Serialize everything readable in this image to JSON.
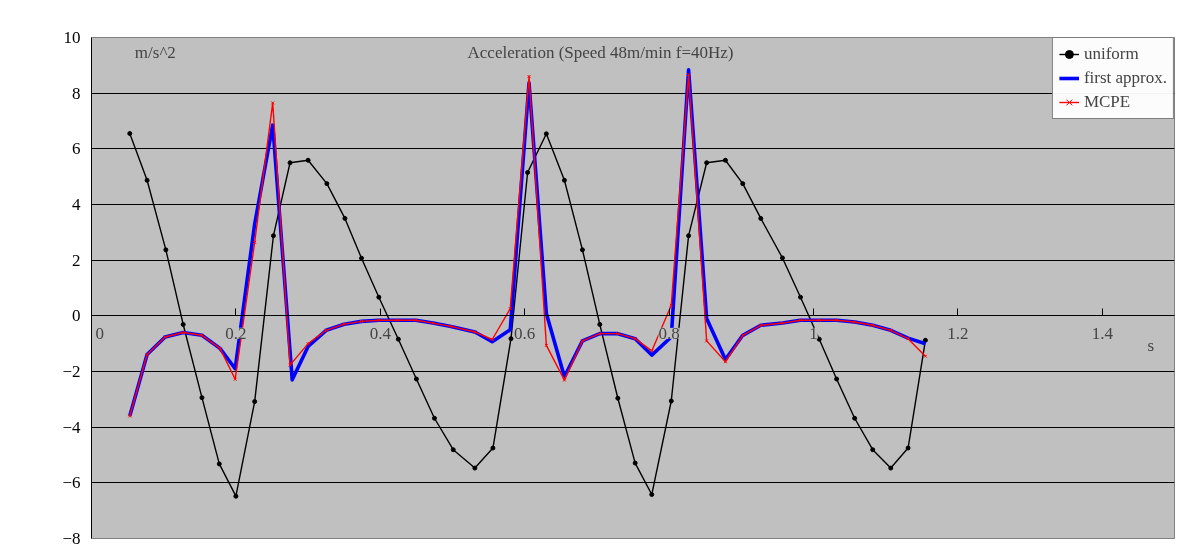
{
  "chart_data": {
    "type": "line",
    "title": "Acceleration (Speed 48m/min f=40Hz)",
    "xlabel": "s",
    "ylabel": "m/s^2",
    "xlim": [
      0,
      1.5
    ],
    "xticks": [
      0,
      0.2,
      0.4,
      0.6,
      0.8,
      1,
      1.2,
      1.4
    ],
    "ylim": [
      -8,
      10
    ],
    "yticks": [
      -8,
      -6,
      -4,
      -2,
      0,
      2,
      4,
      6,
      8,
      10
    ],
    "grid": "y",
    "legend": "top right",
    "series": [
      {
        "name": "uniform",
        "color": "#000000",
        "marker": "circle",
        "x": [
          0.053,
          0.077,
          0.103,
          0.127,
          0.153,
          0.177,
          0.2,
          0.226,
          0.252,
          0.275,
          0.3,
          0.326,
          0.351,
          0.374,
          0.398,
          0.425,
          0.45,
          0.475,
          0.501,
          0.531,
          0.556,
          0.581,
          0.604,
          0.63,
          0.655,
          0.68,
          0.704,
          0.729,
          0.753,
          0.776,
          0.803,
          0.827,
          0.852,
          0.878,
          0.902,
          0.927,
          0.957,
          0.982,
          1.008,
          1.032,
          1.057,
          1.082,
          1.107,
          1.131,
          1.155
        ],
        "values": [
          6.55,
          4.87,
          2.37,
          -0.31,
          -2.94,
          -5.32,
          -6.48,
          -3.08,
          2.88,
          5.5,
          5.59,
          4.75,
          3.5,
          2.07,
          0.67,
          -0.84,
          -2.27,
          -3.68,
          -4.81,
          -5.47,
          -4.75,
          -0.82,
          5.15,
          6.54,
          4.87,
          2.37,
          -0.31,
          -2.96,
          -5.29,
          -6.42,
          -3.06,
          2.88,
          5.5,
          5.59,
          4.75,
          3.5,
          2.08,
          0.67,
          -0.84,
          -2.27,
          -3.68,
          -4.81,
          -5.47,
          -4.75,
          -0.88
        ]
      },
      {
        "name": "first approx.",
        "color": "#0000ff",
        "marker": "none",
        "x": [
          0.053,
          0.077,
          0.102,
          0.127,
          0.153,
          0.178,
          0.199,
          0.226,
          0.251,
          0.278,
          0.3,
          0.325,
          0.35,
          0.374,
          0.398,
          0.423,
          0.449,
          0.473,
          0.498,
          0.531,
          0.555,
          0.58,
          0.606,
          0.63,
          0.655,
          0.68,
          0.704,
          0.729,
          0.753,
          0.776,
          0.803,
          0.827,
          0.852,
          0.878,
          0.902,
          0.927,
          0.957,
          0.982,
          1.008,
          1.032,
          1.057,
          1.082,
          1.107,
          1.131,
          1.155
        ],
        "values": [
          -3.6,
          -1.39,
          -0.76,
          -0.6,
          -0.7,
          -1.17,
          -1.9,
          3.3,
          6.85,
          -2.3,
          -1.1,
          -0.52,
          -0.3,
          -0.2,
          -0.16,
          -0.16,
          -0.16,
          -0.26,
          -0.38,
          -0.58,
          -0.93,
          -0.5,
          8.37,
          0.08,
          -2.19,
          -0.9,
          -0.64,
          -0.64,
          -0.82,
          -1.41,
          -0.76,
          8.84,
          -0.1,
          -1.57,
          -0.7,
          -0.34,
          -0.26,
          -0.16,
          -0.16,
          -0.16,
          -0.22,
          -0.34,
          -0.52,
          -0.8,
          -1.0
        ]
      },
      {
        "name": "MCPE",
        "color": "#ff0000",
        "marker": "cross",
        "x": [
          0.053,
          0.077,
          0.102,
          0.127,
          0.153,
          0.178,
          0.199,
          0.226,
          0.251,
          0.275,
          0.3,
          0.325,
          0.35,
          0.374,
          0.398,
          0.423,
          0.449,
          0.473,
          0.498,
          0.531,
          0.555,
          0.58,
          0.606,
          0.63,
          0.655,
          0.68,
          0.704,
          0.729,
          0.753,
          0.776,
          0.803,
          0.827,
          0.852,
          0.878,
          0.902,
          0.927,
          0.957,
          0.982,
          1.008,
          1.032,
          1.057,
          1.082,
          1.107,
          1.131,
          1.155
        ],
        "values": [
          -3.6,
          -1.39,
          -0.76,
          -0.6,
          -0.7,
          -1.17,
          -2.28,
          2.64,
          7.65,
          -1.77,
          -1.0,
          -0.52,
          -0.3,
          -0.2,
          -0.16,
          -0.16,
          -0.16,
          -0.26,
          -0.38,
          -0.58,
          -0.85,
          0.26,
          8.6,
          -1.06,
          -2.31,
          -0.9,
          -0.64,
          -0.64,
          -0.82,
          -1.26,
          0.38,
          8.67,
          -0.9,
          -1.65,
          -0.7,
          -0.34,
          -0.26,
          -0.16,
          -0.16,
          -0.16,
          -0.22,
          -0.34,
          -0.52,
          -0.82,
          -1.45
        ]
      }
    ]
  }
}
